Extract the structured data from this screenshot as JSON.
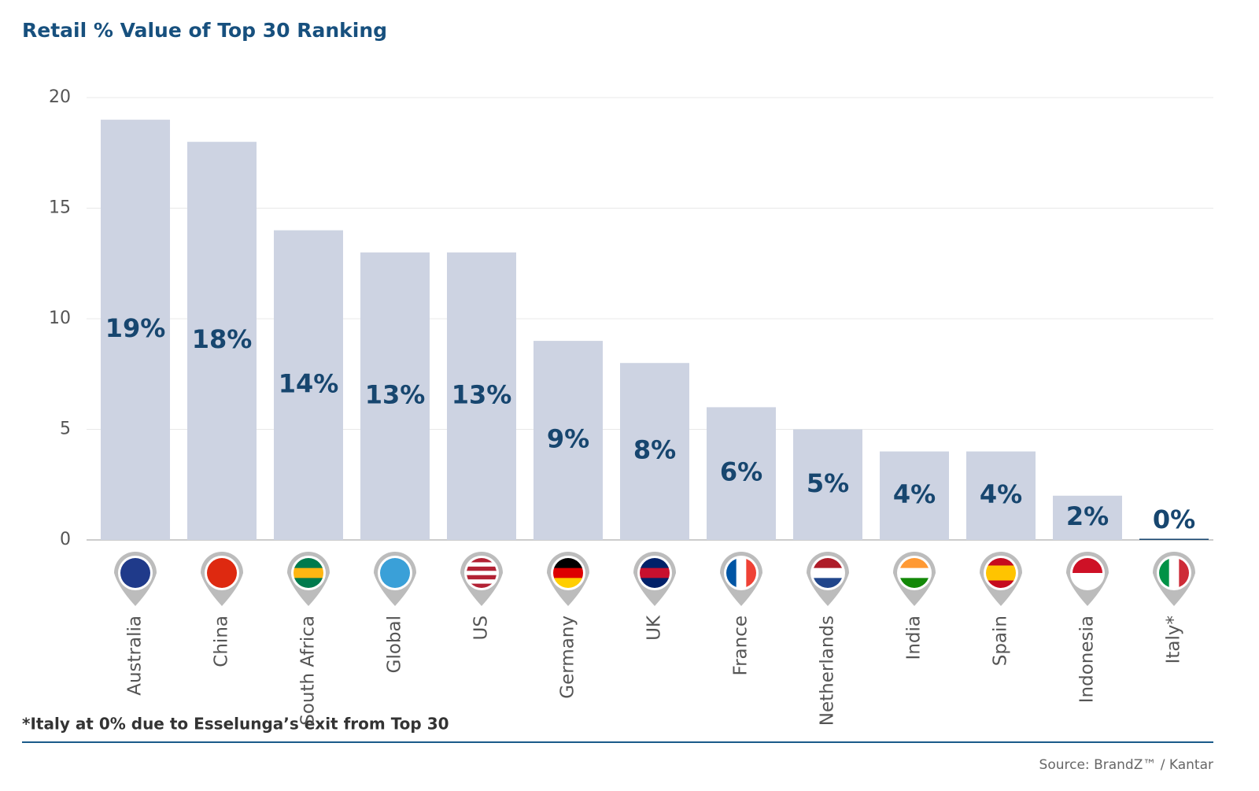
{
  "chart_data": {
    "type": "bar",
    "title": "Retail % Value of Top 30 Ranking",
    "categories": [
      "Australia",
      "China",
      "South Africa",
      "Global",
      "US",
      "Germany",
      "UK",
      "France",
      "Netherlands",
      "India",
      "Spain",
      "Indonesia",
      "Italy*"
    ],
    "values": [
      19,
      18,
      14,
      13,
      13,
      9,
      8,
      6,
      5,
      4,
      4,
      2,
      0
    ],
    "value_labels": [
      "19%",
      "18%",
      "14%",
      "13%",
      "13%",
      "9%",
      "8%",
      "6%",
      "5%",
      "4%",
      "4%",
      "2%",
      "0%"
    ],
    "color": "#cdd3e2",
    "ylim": [
      0,
      20
    ],
    "yticks": [
      0,
      5,
      10,
      15,
      20
    ],
    "grid": true,
    "footnote": "*Italy at 0% due to Esselunga’s exit from Top 30",
    "source": "Source: BrandZ™ / Kantar"
  }
}
